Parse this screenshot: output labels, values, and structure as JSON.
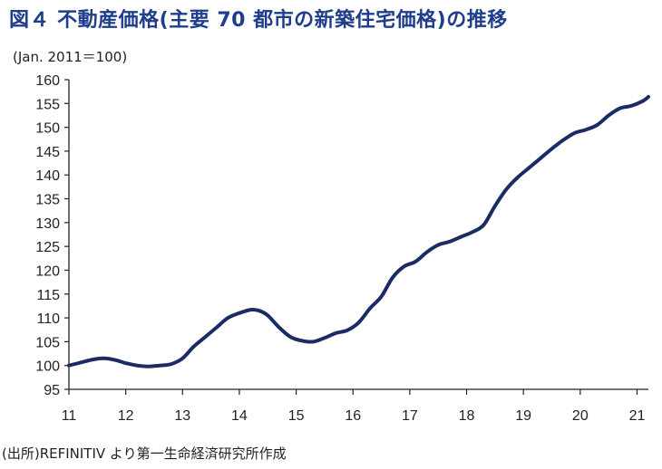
{
  "header": {
    "title": "図４ 不動産価格(主要 70 都市の新築住宅価格)の推移",
    "unit": "(Jan. 2011＝100)"
  },
  "footer": {
    "source": "(出所)REFINITIV より第一生命経済研究所作成"
  },
  "colors": {
    "title": "#1f3d8c",
    "line": "#1b2b66",
    "axis": "#222222"
  },
  "chart_data": {
    "type": "line",
    "title": "不動産価格(主要 70 都市の新築住宅価格)の推移",
    "xlabel": "",
    "ylabel": "(Jan. 2011＝100)",
    "ylim": [
      95,
      160
    ],
    "xlim": [
      11,
      21.2
    ],
    "yticks": [
      95,
      100,
      105,
      110,
      115,
      120,
      125,
      130,
      135,
      140,
      145,
      150,
      155,
      160
    ],
    "xticks": [
      11,
      12,
      13,
      14,
      15,
      16,
      17,
      18,
      19,
      20,
      21
    ],
    "xtick_labels": [
      "11",
      "12",
      "13",
      "14",
      "15",
      "16",
      "17",
      "18",
      "19",
      "20",
      "21"
    ],
    "grid": false,
    "series": [
      {
        "name": "主要70都市の新築住宅価格",
        "x": [
          11.0,
          11.2,
          11.4,
          11.6,
          11.8,
          12.0,
          12.2,
          12.4,
          12.6,
          12.8,
          13.0,
          13.2,
          13.4,
          13.6,
          13.8,
          14.0,
          14.2,
          14.35,
          14.5,
          14.7,
          14.9,
          15.1,
          15.3,
          15.5,
          15.7,
          15.9,
          16.1,
          16.3,
          16.5,
          16.7,
          16.9,
          17.1,
          17.3,
          17.5,
          17.7,
          17.9,
          18.1,
          18.3,
          18.5,
          18.7,
          18.9,
          19.1,
          19.3,
          19.5,
          19.7,
          19.9,
          20.1,
          20.3,
          20.5,
          20.7,
          20.9,
          21.1,
          21.2
        ],
        "y": [
          100.0,
          100.6,
          101.2,
          101.5,
          101.2,
          100.5,
          100.0,
          99.8,
          100.0,
          100.3,
          101.5,
          104.0,
          106.0,
          108.0,
          110.0,
          111.0,
          111.7,
          111.5,
          110.5,
          108.0,
          106.0,
          105.2,
          105.0,
          105.8,
          106.8,
          107.4,
          109.0,
          112.0,
          114.5,
          118.5,
          120.8,
          121.8,
          123.8,
          125.3,
          126.0,
          127.0,
          128.0,
          129.5,
          133.5,
          137.0,
          139.5,
          141.5,
          143.5,
          145.5,
          147.3,
          148.8,
          149.5,
          150.5,
          152.5,
          154.0,
          154.5,
          155.5,
          156.4
        ]
      }
    ]
  }
}
